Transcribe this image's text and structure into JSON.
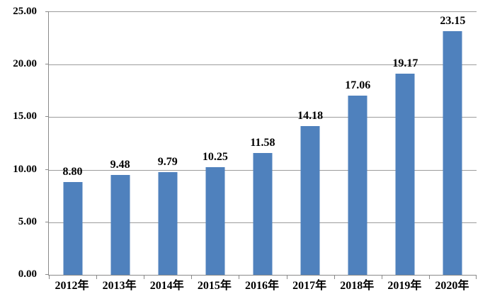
{
  "chart_data": {
    "type": "bar",
    "title": "",
    "xlabel": "",
    "ylabel": "",
    "categories": [
      "2012年",
      "2013年",
      "2014年",
      "2015年",
      "2016年",
      "2017年",
      "2018年",
      "2019年",
      "2020年"
    ],
    "values": [
      8.8,
      9.48,
      9.79,
      10.25,
      11.58,
      14.18,
      17.06,
      19.17,
      23.15
    ],
    "value_labels": [
      "8.80",
      "9.48",
      "9.79",
      "10.25",
      "11.58",
      "14.18",
      "17.06",
      "19.17",
      "23.15"
    ],
    "y_tick_labels": [
      "25.00",
      "20.00",
      "15.00",
      "10.00",
      "5.00",
      "0.00"
    ],
    "ylim": [
      0,
      25
    ],
    "grid": true,
    "legend": "none",
    "colors": {
      "bar": "#4f81bd",
      "gridline": "#9c9c9c",
      "axis": "#8a8a8a",
      "text": "#000000",
      "background": "#ffffff"
    }
  }
}
